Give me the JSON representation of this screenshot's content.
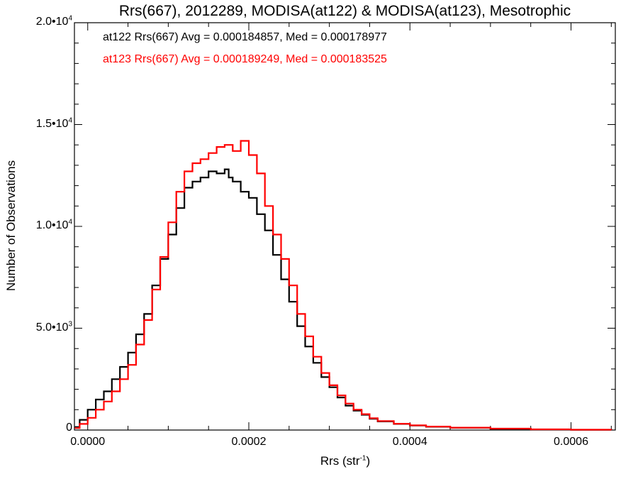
{
  "chart_data": {
    "type": "line",
    "title": "Rrs(667), 2012289, MODISA(at122) & MODISA(at123), Mesotrophic",
    "xlabel": "Rrs (str",
    "xlabel_sup": "-1",
    "xlabel_suffix": ")",
    "ylabel": "Number of Observations",
    "xlim": [
      -1.65e-05,
      0.000655
    ],
    "ylim": [
      0,
      20000
    ],
    "x_ticks": [
      {
        "value": 0.0,
        "label": "0.0000"
      },
      {
        "value": 0.0002,
        "label": "0.0002"
      },
      {
        "value": 0.0004,
        "label": "0.0004"
      },
      {
        "value": 0.0006,
        "label": "0.0006"
      }
    ],
    "y_ticks": [
      {
        "value": 0,
        "mant": "0",
        "exp": ""
      },
      {
        "value": 5000,
        "mant": "5.0•10",
        "exp": "3"
      },
      {
        "value": 10000,
        "mant": "1.0•10",
        "exp": "4"
      },
      {
        "value": 15000,
        "mant": "1.5•10",
        "exp": "4"
      },
      {
        "value": 20000,
        "mant": "2.0•10",
        "exp": "4"
      }
    ],
    "grid": false,
    "legend_position": "top-left",
    "legend": [
      {
        "text": "at122 Rrs(667) Avg = 0.000184857, Med = 0.000178977",
        "color": "#000000"
      },
      {
        "text": "at123 Rrs(667) Avg = 0.000189249, Med = 0.000183525",
        "color": "#ff0000"
      }
    ],
    "series": [
      {
        "color": "#000000",
        "step": true,
        "x": [
          -1.6e-05,
          -1e-05,
          0.0,
          1e-05,
          2e-05,
          3e-05,
          4e-05,
          5e-05,
          6e-05,
          7e-05,
          8e-05,
          9e-05,
          0.0001,
          0.00011,
          0.00012,
          0.00013,
          0.00014,
          0.00015,
          0.00016,
          0.00017,
          0.000175,
          0.00018,
          0.00019,
          0.0002,
          0.00021,
          0.00022,
          0.00023,
          0.00024,
          0.00025,
          0.00026,
          0.00027,
          0.00028,
          0.00029,
          0.0003,
          0.00031,
          0.00032,
          0.00033,
          0.00034,
          0.00035,
          0.00036,
          0.00038,
          0.0004,
          0.00042,
          0.00045,
          0.0005,
          0.00055,
          0.0006,
          0.00065
        ],
        "y": [
          150,
          500,
          1000,
          1500,
          1900,
          2500,
          3100,
          3800,
          4700,
          5700,
          7100,
          8400,
          9600,
          10900,
          11900,
          12200,
          12400,
          12700,
          12600,
          12800,
          12400,
          12200,
          11700,
          11400,
          10600,
          9800,
          8600,
          7400,
          6300,
          5100,
          4100,
          3300,
          2600,
          2100,
          1600,
          1200,
          950,
          750,
          550,
          420,
          300,
          220,
          160,
          110,
          60,
          30,
          15,
          5
        ]
      },
      {
        "color": "#ff0000",
        "step": true,
        "x": [
          -1.6e-05,
          -1e-05,
          0.0,
          1e-05,
          2e-05,
          3e-05,
          4e-05,
          5e-05,
          6e-05,
          7e-05,
          8e-05,
          9e-05,
          0.0001,
          0.00011,
          0.00012,
          0.00013,
          0.00014,
          0.00015,
          0.00016,
          0.00017,
          0.00018,
          0.00019,
          0.0002,
          0.00021,
          0.00022,
          0.00023,
          0.00024,
          0.00025,
          0.00026,
          0.00027,
          0.00028,
          0.00029,
          0.0003,
          0.00031,
          0.00032,
          0.00033,
          0.00034,
          0.00035,
          0.00036,
          0.00038,
          0.0004,
          0.00042,
          0.00045,
          0.0005,
          0.00055,
          0.0006,
          0.00065
        ],
        "y": [
          100,
          300,
          600,
          1000,
          1400,
          1900,
          2500,
          3200,
          4200,
          5400,
          6900,
          8500,
          10200,
          11700,
          12700,
          13100,
          13300,
          13600,
          13900,
          14000,
          13700,
          14200,
          13500,
          12600,
          11000,
          9600,
          8400,
          7100,
          5700,
          4600,
          3600,
          2800,
          2200,
          1700,
          1300,
          1000,
          780,
          580,
          440,
          310,
          230,
          170,
          120,
          70,
          35,
          18,
          6
        ]
      }
    ]
  }
}
